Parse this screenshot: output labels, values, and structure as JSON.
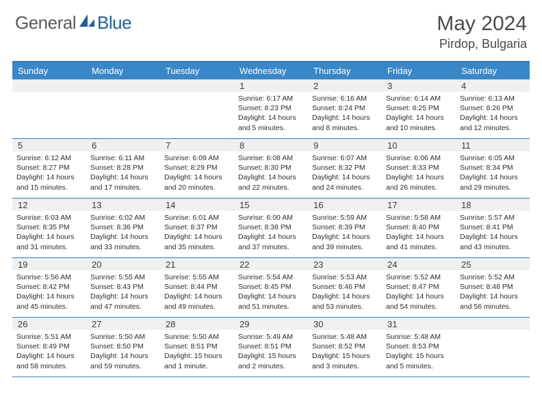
{
  "brand": {
    "name_part1": "General",
    "name_part2": "Blue"
  },
  "title": "May 2024",
  "location": "Pirdop, Bulgaria",
  "colors": {
    "header_bg": "#3a87c7",
    "border": "#2f7bbf",
    "daynum_bg": "#eef0f2",
    "text": "#2b2b2b",
    "title_text": "#4a4a4a",
    "logo_gray": "#5a5a5a",
    "logo_blue": "#1f5f9e"
  },
  "typography": {
    "title_fontsize": 30,
    "location_fontsize": 18,
    "dayheader_fontsize": 13,
    "cell_fontsize": 10.5
  },
  "day_names": [
    "Sunday",
    "Monday",
    "Tuesday",
    "Wednesday",
    "Thursday",
    "Friday",
    "Saturday"
  ],
  "weeks": [
    [
      {
        "n": "",
        "sr": "",
        "ss": "",
        "dl": ""
      },
      {
        "n": "",
        "sr": "",
        "ss": "",
        "dl": ""
      },
      {
        "n": "",
        "sr": "",
        "ss": "",
        "dl": ""
      },
      {
        "n": "1",
        "sr": "Sunrise: 6:17 AM",
        "ss": "Sunset: 8:23 PM",
        "dl": "Daylight: 14 hours and 5 minutes."
      },
      {
        "n": "2",
        "sr": "Sunrise: 6:16 AM",
        "ss": "Sunset: 8:24 PM",
        "dl": "Daylight: 14 hours and 8 minutes."
      },
      {
        "n": "3",
        "sr": "Sunrise: 6:14 AM",
        "ss": "Sunset: 8:25 PM",
        "dl": "Daylight: 14 hours and 10 minutes."
      },
      {
        "n": "4",
        "sr": "Sunrise: 6:13 AM",
        "ss": "Sunset: 8:26 PM",
        "dl": "Daylight: 14 hours and 12 minutes."
      }
    ],
    [
      {
        "n": "5",
        "sr": "Sunrise: 6:12 AM",
        "ss": "Sunset: 8:27 PM",
        "dl": "Daylight: 14 hours and 15 minutes."
      },
      {
        "n": "6",
        "sr": "Sunrise: 6:11 AM",
        "ss": "Sunset: 8:28 PM",
        "dl": "Daylight: 14 hours and 17 minutes."
      },
      {
        "n": "7",
        "sr": "Sunrise: 6:09 AM",
        "ss": "Sunset: 8:29 PM",
        "dl": "Daylight: 14 hours and 20 minutes."
      },
      {
        "n": "8",
        "sr": "Sunrise: 6:08 AM",
        "ss": "Sunset: 8:30 PM",
        "dl": "Daylight: 14 hours and 22 minutes."
      },
      {
        "n": "9",
        "sr": "Sunrise: 6:07 AM",
        "ss": "Sunset: 8:32 PM",
        "dl": "Daylight: 14 hours and 24 minutes."
      },
      {
        "n": "10",
        "sr": "Sunrise: 6:06 AM",
        "ss": "Sunset: 8:33 PM",
        "dl": "Daylight: 14 hours and 26 minutes."
      },
      {
        "n": "11",
        "sr": "Sunrise: 6:05 AM",
        "ss": "Sunset: 8:34 PM",
        "dl": "Daylight: 14 hours and 29 minutes."
      }
    ],
    [
      {
        "n": "12",
        "sr": "Sunrise: 6:03 AM",
        "ss": "Sunset: 8:35 PM",
        "dl": "Daylight: 14 hours and 31 minutes."
      },
      {
        "n": "13",
        "sr": "Sunrise: 6:02 AM",
        "ss": "Sunset: 8:36 PM",
        "dl": "Daylight: 14 hours and 33 minutes."
      },
      {
        "n": "14",
        "sr": "Sunrise: 6:01 AM",
        "ss": "Sunset: 8:37 PM",
        "dl": "Daylight: 14 hours and 35 minutes."
      },
      {
        "n": "15",
        "sr": "Sunrise: 6:00 AM",
        "ss": "Sunset: 8:38 PM",
        "dl": "Daylight: 14 hours and 37 minutes."
      },
      {
        "n": "16",
        "sr": "Sunrise: 5:59 AM",
        "ss": "Sunset: 8:39 PM",
        "dl": "Daylight: 14 hours and 39 minutes."
      },
      {
        "n": "17",
        "sr": "Sunrise: 5:58 AM",
        "ss": "Sunset: 8:40 PM",
        "dl": "Daylight: 14 hours and 41 minutes."
      },
      {
        "n": "18",
        "sr": "Sunrise: 5:57 AM",
        "ss": "Sunset: 8:41 PM",
        "dl": "Daylight: 14 hours and 43 minutes."
      }
    ],
    [
      {
        "n": "19",
        "sr": "Sunrise: 5:56 AM",
        "ss": "Sunset: 8:42 PM",
        "dl": "Daylight: 14 hours and 45 minutes."
      },
      {
        "n": "20",
        "sr": "Sunrise: 5:55 AM",
        "ss": "Sunset: 8:43 PM",
        "dl": "Daylight: 14 hours and 47 minutes."
      },
      {
        "n": "21",
        "sr": "Sunrise: 5:55 AM",
        "ss": "Sunset: 8:44 PM",
        "dl": "Daylight: 14 hours and 49 minutes."
      },
      {
        "n": "22",
        "sr": "Sunrise: 5:54 AM",
        "ss": "Sunset: 8:45 PM",
        "dl": "Daylight: 14 hours and 51 minutes."
      },
      {
        "n": "23",
        "sr": "Sunrise: 5:53 AM",
        "ss": "Sunset: 8:46 PM",
        "dl": "Daylight: 14 hours and 53 minutes."
      },
      {
        "n": "24",
        "sr": "Sunrise: 5:52 AM",
        "ss": "Sunset: 8:47 PM",
        "dl": "Daylight: 14 hours and 54 minutes."
      },
      {
        "n": "25",
        "sr": "Sunrise: 5:52 AM",
        "ss": "Sunset: 8:48 PM",
        "dl": "Daylight: 14 hours and 56 minutes."
      }
    ],
    [
      {
        "n": "26",
        "sr": "Sunrise: 5:51 AM",
        "ss": "Sunset: 8:49 PM",
        "dl": "Daylight: 14 hours and 58 minutes."
      },
      {
        "n": "27",
        "sr": "Sunrise: 5:50 AM",
        "ss": "Sunset: 8:50 PM",
        "dl": "Daylight: 14 hours and 59 minutes."
      },
      {
        "n": "28",
        "sr": "Sunrise: 5:50 AM",
        "ss": "Sunset: 8:51 PM",
        "dl": "Daylight: 15 hours and 1 minute."
      },
      {
        "n": "29",
        "sr": "Sunrise: 5:49 AM",
        "ss": "Sunset: 8:51 PM",
        "dl": "Daylight: 15 hours and 2 minutes."
      },
      {
        "n": "30",
        "sr": "Sunrise: 5:48 AM",
        "ss": "Sunset: 8:52 PM",
        "dl": "Daylight: 15 hours and 3 minutes."
      },
      {
        "n": "31",
        "sr": "Sunrise: 5:48 AM",
        "ss": "Sunset: 8:53 PM",
        "dl": "Daylight: 15 hours and 5 minutes."
      },
      {
        "n": "",
        "sr": "",
        "ss": "",
        "dl": ""
      }
    ]
  ]
}
